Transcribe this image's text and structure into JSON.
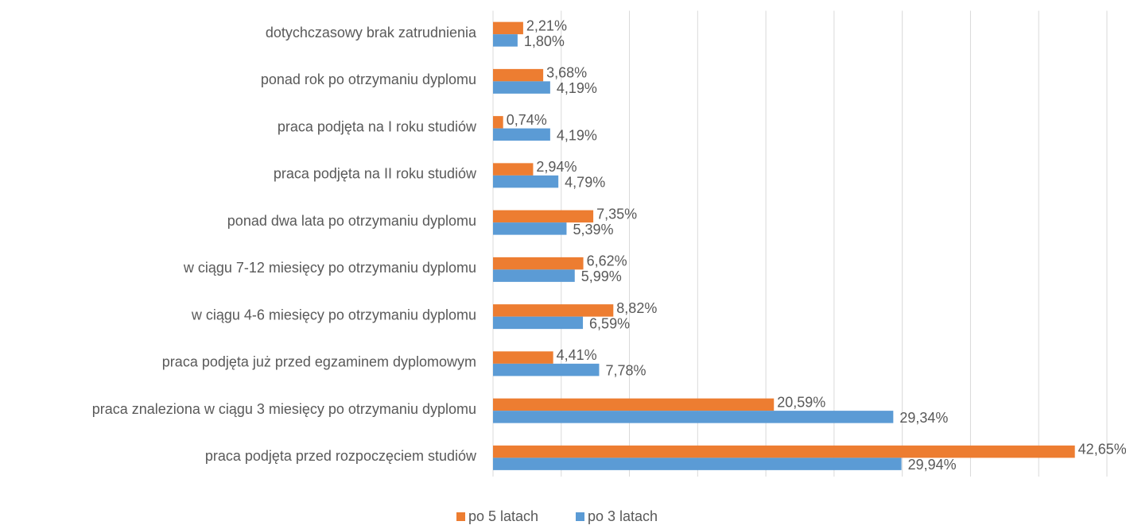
{
  "chart_data": {
    "type": "bar",
    "orientation": "horizontal",
    "categories": [
      "dotychczasowy brak zatrudnienia",
      "ponad rok po otrzymaniu dyplomu",
      "praca podjęta na I roku studiów",
      "praca podjęta na II roku studiów",
      "ponad dwa lata po otrzymaniu dyplomu",
      "w ciągu 7-12 miesięcy po otrzymaniu dyplomu",
      "w ciągu 4-6 miesięcy po otrzymaniu dyplomu",
      "praca podjęta już przed egzaminem dyplomowym",
      "praca znaleziona w ciągu 3 miesięcy po otrzymaniu dyplomu",
      "praca podjęta przed rozpoczęciem studiów"
    ],
    "series": [
      {
        "name": "po 5 latach",
        "color": "#ed7d31",
        "values": [
          2.21,
          3.68,
          0.74,
          2.94,
          7.35,
          6.62,
          8.82,
          4.41,
          20.59,
          42.65
        ],
        "value_labels": [
          "2,21%",
          "3,68%",
          "0,74%",
          "2,94%",
          "7,35%",
          "6,62%",
          "8,82%",
          "4,41%",
          "20,59%",
          "42,65%"
        ]
      },
      {
        "name": "po 3 latach",
        "color": "#5b9bd5",
        "values": [
          1.8,
          4.19,
          4.19,
          4.79,
          5.39,
          5.99,
          6.59,
          7.78,
          29.34,
          29.94
        ],
        "value_labels": [
          "1,80%",
          "4,19%",
          "4,19%",
          "4,79%",
          "5,39%",
          "5,99%",
          "6,59%",
          "7,78%",
          "29,34%",
          "29,94%"
        ]
      }
    ],
    "xlim": [
      0,
      45
    ],
    "xticks": [
      0,
      5,
      10,
      15,
      20,
      25,
      30,
      35,
      40,
      45
    ],
    "grid": true,
    "legend": "bottom"
  }
}
